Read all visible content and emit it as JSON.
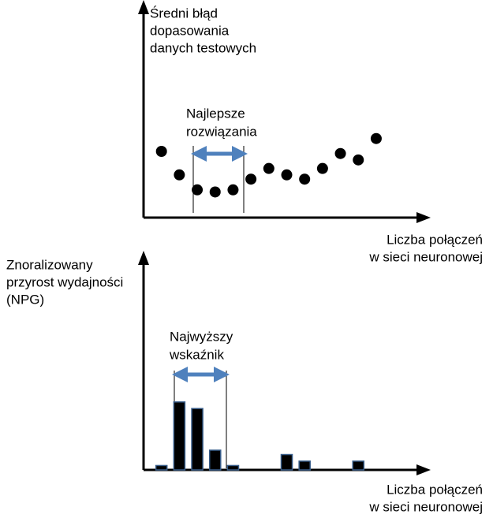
{
  "chart_data": [
    {
      "type": "scatter",
      "y_label": [
        "Średni błąd",
        "dopasowania",
        "danych testowych"
      ],
      "x_label": [
        "Liczba połączeń",
        "w sieci neuronowej"
      ],
      "annotation": [
        "Najlepsze",
        "rozwiązania"
      ],
      "x": [
        1,
        2,
        3,
        4,
        5,
        6,
        7,
        8,
        9,
        10,
        11,
        12,
        13
      ],
      "values": [
        3.1,
        2.0,
        1.3,
        1.2,
        1.3,
        1.8,
        2.3,
        2.0,
        1.8,
        2.3,
        3.0,
        2.7,
        3.7
      ],
      "color": "#000000",
      "xlim": [
        0,
        16
      ],
      "ylim": [
        0,
        10
      ]
    },
    {
      "type": "bar",
      "y_label": [
        "Znoralizowany",
        "przyrost wydajności",
        "(NPG)"
      ],
      "x_label": [
        "Liczba połączeń",
        "w sieci neuronowej"
      ],
      "annotation": [
        "Najwyższy",
        "wskaźnik"
      ],
      "x": [
        1,
        2,
        3,
        4,
        5,
        8,
        9,
        12
      ],
      "values": [
        0.2,
        3.1,
        2.8,
        0.9,
        0.2,
        0.7,
        0.4,
        0.4
      ],
      "color": "#000000",
      "xlim": [
        0,
        16
      ],
      "ylim": [
        0,
        10
      ]
    }
  ]
}
